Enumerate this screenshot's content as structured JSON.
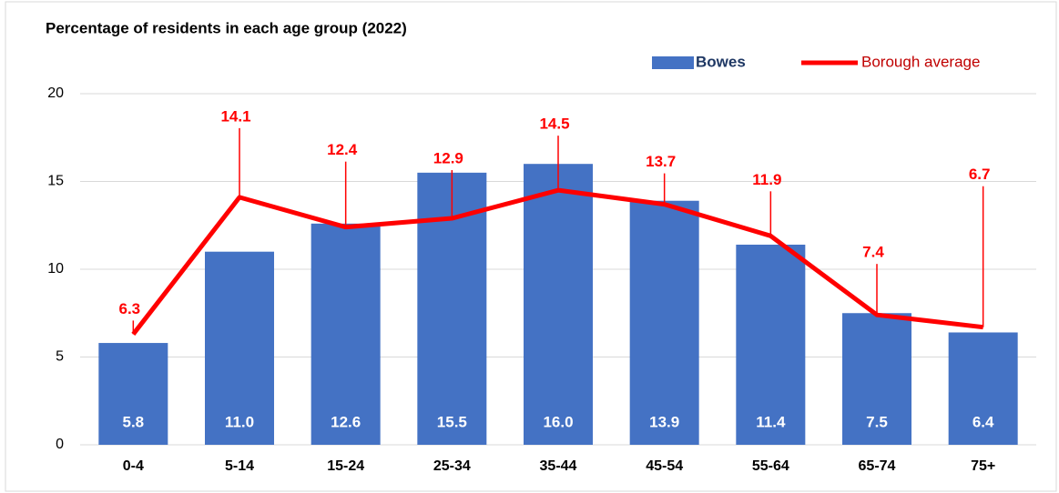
{
  "chart_data": {
    "type": "bar",
    "title": "Percentage of residents in each age group (2022)",
    "categories": [
      "0-4",
      "5-14",
      "15-24",
      "25-34",
      "35-44",
      "45-54",
      "55-64",
      "65-74",
      "75+"
    ],
    "series": [
      {
        "name": "Bowes",
        "type": "bar",
        "color": "#4472c4",
        "values": [
          5.8,
          11.0,
          12.6,
          15.5,
          16.0,
          13.9,
          11.4,
          7.5,
          6.4
        ],
        "value_labels": [
          "5.8",
          "11.0",
          "12.6",
          "15.5",
          "16.0",
          "13.9",
          "11.4",
          "7.5",
          "6.4"
        ]
      },
      {
        "name": "Borough average",
        "type": "line",
        "color": "#ff0000",
        "values": [
          6.3,
          14.1,
          12.4,
          12.9,
          14.5,
          13.7,
          11.9,
          7.4,
          6.7
        ]
      }
    ],
    "ylim": [
      0,
      20
    ],
    "yticks": [
      0,
      5,
      10,
      15,
      20
    ],
    "grid": true,
    "legend": "top-right"
  }
}
